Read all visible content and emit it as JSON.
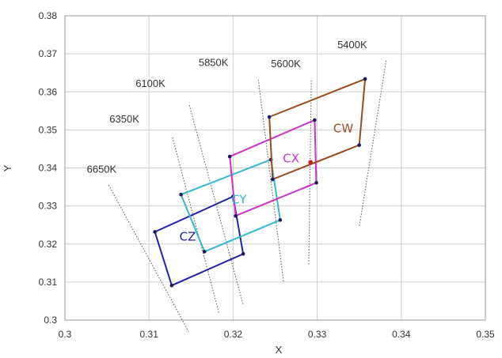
{
  "chart_data": {
    "type": "scatter",
    "xlabel": "X",
    "ylabel": "Y",
    "xlim": [
      0.3,
      0.35
    ],
    "ylim": [
      0.3,
      0.38
    ],
    "x_ticks": [
      "0.3",
      "0.31",
      "0.32",
      "0.33",
      "0.34",
      "0.35"
    ],
    "y_ticks": [
      "0.3",
      "0.31",
      "0.32",
      "0.33",
      "0.34",
      "0.35",
      "0.36",
      "0.37",
      "0.38"
    ],
    "grid": true,
    "series": [
      {
        "name": "CZ",
        "color": "#2323a8",
        "points": [
          [
            0.3107,
            0.3232
          ],
          [
            0.32,
            0.3325
          ],
          [
            0.3212,
            0.3174
          ],
          [
            0.3127,
            0.3091
          ]
        ]
      },
      {
        "name": "CY",
        "color": "#35b8d0",
        "points": [
          [
            0.3138,
            0.333
          ],
          [
            0.3245,
            0.3422
          ],
          [
            0.3256,
            0.3263
          ],
          [
            0.3166,
            0.318
          ]
        ]
      },
      {
        "name": "CX",
        "color": "#cf2fcf",
        "points": [
          [
            0.3196,
            0.343
          ],
          [
            0.3297,
            0.3526
          ],
          [
            0.3299,
            0.3361
          ],
          [
            0.3203,
            0.3274
          ]
        ]
      },
      {
        "name": "CW",
        "color": "#9c4a1e",
        "points": [
          [
            0.3243,
            0.3534
          ],
          [
            0.3357,
            0.3634
          ],
          [
            0.335,
            0.346
          ],
          [
            0.3247,
            0.337
          ]
        ]
      }
    ],
    "extra_points": [
      {
        "x": 0.3292,
        "y": 0.3415,
        "color": "#d02020"
      }
    ],
    "cct_labels": [
      {
        "text": "6650K",
        "x": 0.3026,
        "y": 0.3388,
        "line": [
          [
            0.3052,
            0.3355
          ],
          [
            0.3147,
            0.297
          ]
        ]
      },
      {
        "text": "6350K",
        "x": 0.3053,
        "y": 0.352,
        "line": [
          [
            0.3128,
            0.348
          ],
          [
            0.3183,
            0.302
          ]
        ]
      },
      {
        "text": "6100K",
        "x": 0.3084,
        "y": 0.3613,
        "line": [
          [
            0.3148,
            0.3565
          ],
          [
            0.3212,
            0.304
          ]
        ]
      },
      {
        "text": "5850K",
        "x": 0.3159,
        "y": 0.3668,
        "line": [
          [
            0.323,
            0.3632
          ],
          [
            0.326,
            0.31
          ]
        ]
      },
      {
        "text": "5600K",
        "x": 0.3245,
        "y": 0.3665,
        "line": [
          [
            0.3293,
            0.363
          ],
          [
            0.329,
            0.3145
          ]
        ]
      },
      {
        "text": "5400K",
        "x": 0.3324,
        "y": 0.3715,
        "line": [
          [
            0.3382,
            0.3682
          ],
          [
            0.335,
            0.3245
          ]
        ]
      }
    ],
    "region_labels": [
      {
        "text": "CZ",
        "x": 0.3146,
        "y": 0.3209,
        "color": "#2323a8"
      },
      {
        "text": "CY",
        "x": 0.3207,
        "y": 0.3307,
        "color": "#35b8d0"
      },
      {
        "text": "CX",
        "x": 0.3269,
        "y": 0.3415,
        "color": "#cf2fcf"
      },
      {
        "text": "CW",
        "x": 0.3331,
        "y": 0.3494,
        "color": "#9c4a1e"
      }
    ]
  }
}
